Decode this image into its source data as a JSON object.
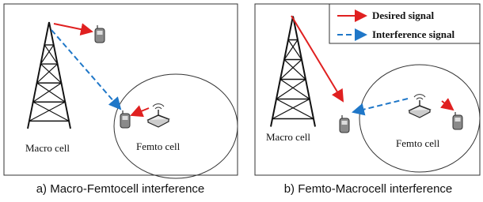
{
  "panels": [
    {
      "labels": {
        "macro": "Macro cell",
        "femto": "Femto cell"
      },
      "caption": "a) Macro-Femtocell interference"
    },
    {
      "legend": [
        "Desired signal",
        "Interference signal"
      ],
      "labels": {
        "macro": "Macro cell",
        "femto": "Femto cell"
      },
      "caption": "b) Femto-Macrocell interference"
    }
  ]
}
